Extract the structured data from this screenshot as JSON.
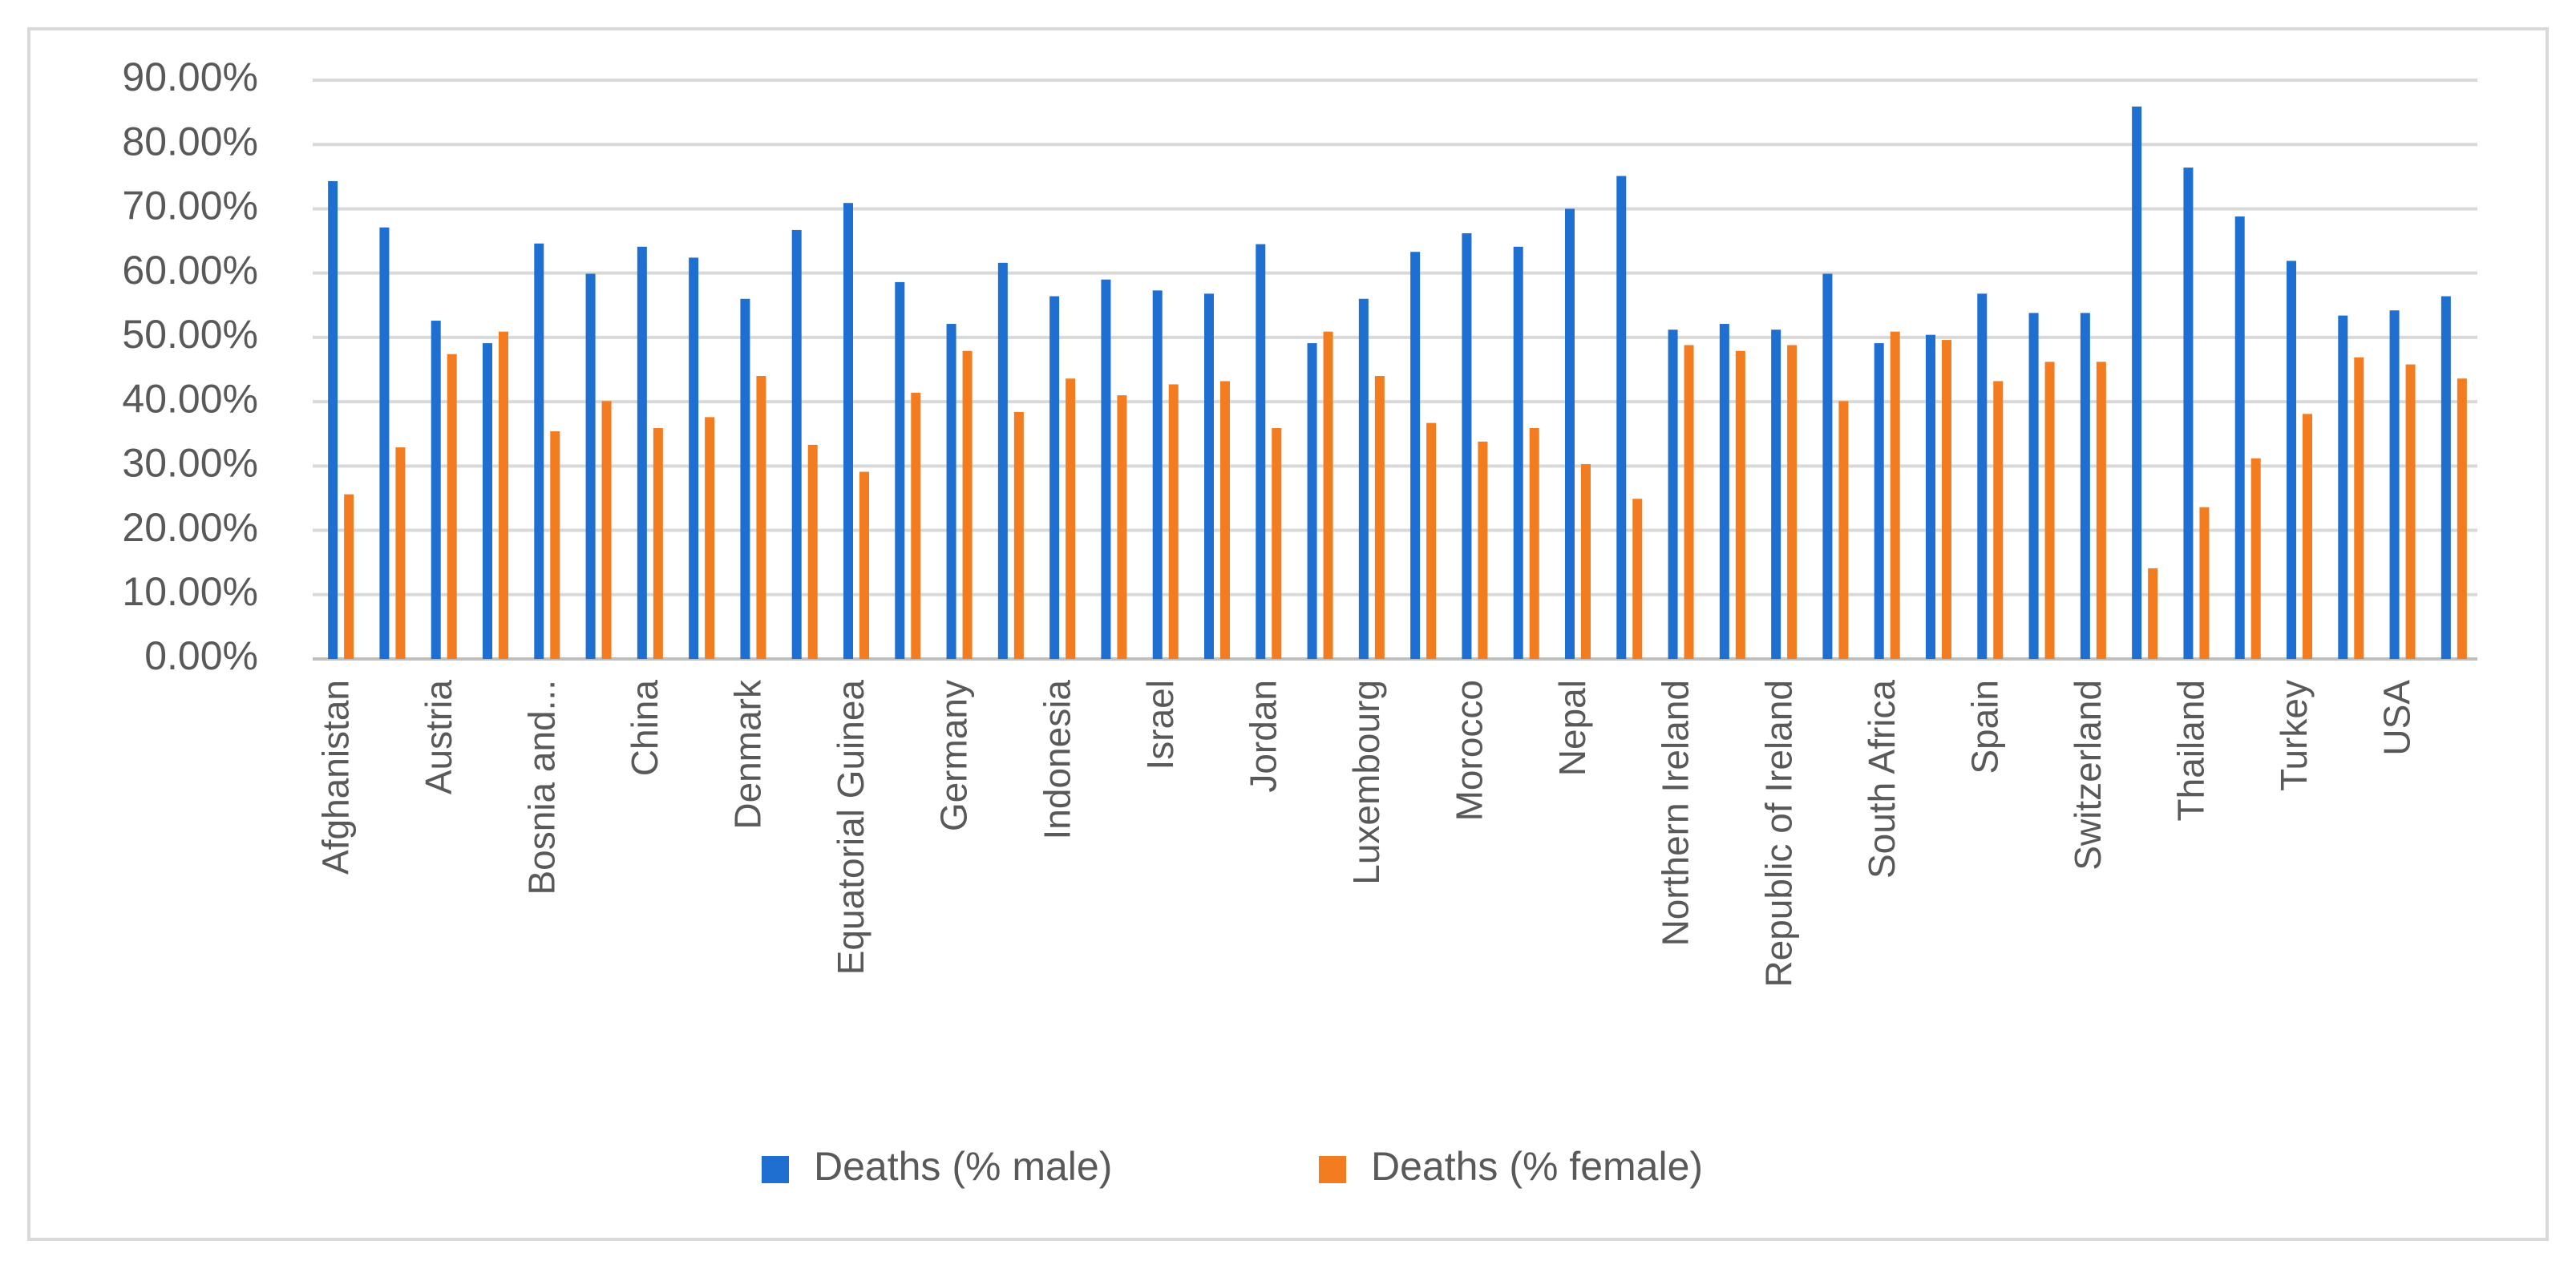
{
  "chart_data": {
    "type": "bar",
    "title": "",
    "xlabel": "",
    "ylabel": "",
    "ylim": [
      0,
      90
    ],
    "yticks": [
      "0.00%",
      "10.00%",
      "20.00%",
      "30.00%",
      "40.00%",
      "50.00%",
      "60.00%",
      "70.00%",
      "80.00%",
      "90.00%"
    ],
    "grid": true,
    "legend_position": "bottom",
    "categories": [
      "Afghanistan",
      "",
      "Austria",
      "",
      "Bosnia and...",
      "",
      "China",
      "",
      "Denmark",
      "",
      "Equatorial Guinea",
      "",
      "Germany",
      "",
      "Indonesia",
      "",
      "Israel",
      "",
      "Jordan",
      "",
      "Luxembourg",
      "",
      "Morocco",
      "",
      "Nepal",
      "",
      "Northern Ireland",
      "",
      "Republic of Ireland",
      "",
      "South Africa",
      "",
      "Spain",
      "",
      "Switzerland",
      "",
      "Thailand",
      "",
      "Turkey",
      "",
      "USA",
      ""
    ],
    "series": [
      {
        "name": "Deaths (% male)",
        "color": "#1f6fd0",
        "values": [
          74.3,
          67.1,
          52.6,
          49.1,
          64.6,
          59.9,
          64.1,
          62.4,
          56.0,
          66.7,
          70.9,
          58.6,
          52.1,
          61.6,
          56.4,
          59.0,
          57.3,
          56.8,
          64.5,
          49.1,
          56.0,
          63.3,
          66.2,
          64.1,
          70.0,
          75.1,
          51.2,
          52.1,
          51.2,
          59.9,
          49.1,
          50.4,
          56.8,
          53.8,
          53.8,
          85.9,
          76.4,
          68.8,
          61.9,
          53.4,
          54.2,
          56.4
        ]
      },
      {
        "name": "Deaths (% female)",
        "color": "#f47c20",
        "values": [
          25.6,
          32.9,
          47.4,
          50.9,
          35.4,
          40.1,
          35.9,
          37.6,
          44.0,
          33.3,
          29.1,
          41.4,
          47.9,
          38.4,
          43.6,
          41.0,
          42.7,
          43.2,
          35.9,
          50.9,
          44.0,
          36.7,
          33.8,
          35.9,
          30.3,
          24.9,
          48.8,
          47.9,
          48.8,
          40.1,
          50.9,
          49.6,
          43.2,
          46.2,
          46.2,
          14.1,
          23.6,
          31.2,
          38.1,
          46.9,
          45.8,
          43.6
        ]
      }
    ]
  }
}
